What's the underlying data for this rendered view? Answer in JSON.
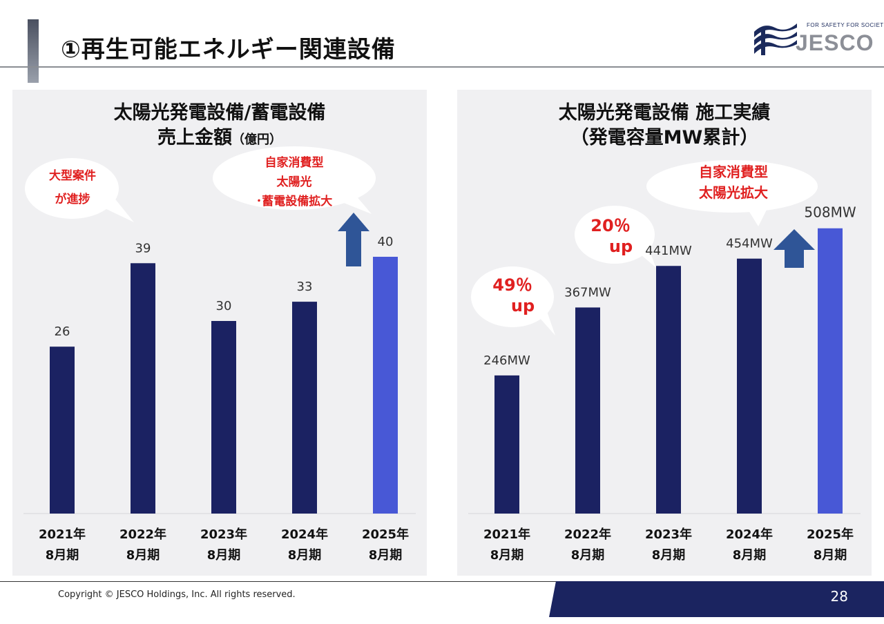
{
  "page": {
    "title": "①再生可能エネルギー関連設備",
    "logo_tagline": "FOR SAFETY FOR SOCIETY",
    "logo_text": "JESCO",
    "copyright": "Copyright © JESCO Holdings, Inc.  All rights reserved.",
    "page_number": "28"
  },
  "colors": {
    "bar": "#1b2262",
    "bar_highlight": "#4858d6",
    "arrow": "#2f5597",
    "callout_text": "#e02020",
    "panel_bg": "#f0f0f2"
  },
  "left_panel": {
    "title_line1": "太陽光発電設備/蓄電設備",
    "title_line2": "売上金額",
    "title_unit": "（億円）",
    "callout_a": [
      "大型案件",
      "が進捗"
    ],
    "callout_b": [
      "自家消費型",
      "太陽光",
      "･蓄電設備拡大"
    ]
  },
  "right_panel": {
    "title_line1": "太陽光発電設備 施工実績",
    "title_line2": "（発電容量MW累計）",
    "callout_a": [
      "49％",
      "up"
    ],
    "callout_b": [
      "20％",
      "up"
    ],
    "callout_c": [
      "自家消費型",
      "太陽光拡大"
    ]
  },
  "chart_data": [
    {
      "type": "bar",
      "title": "太陽光発電設備/蓄電設備 売上金額（億円）",
      "categories": [
        "2021年\n8月期",
        "2022年\n8月期",
        "2023年\n8月期",
        "2024年\n8月期",
        "2025年\n8月期"
      ],
      "values": [
        26,
        39,
        30,
        33,
        40
      ],
      "data_labels": [
        "26",
        "39",
        "30",
        "33",
        "40"
      ],
      "highlight_index": 4,
      "ylim": [
        0,
        50
      ],
      "grid": false
    },
    {
      "type": "bar",
      "title": "太陽光発電設備 施工実績（発電容量MW累計）",
      "categories": [
        "2021年\n8月期",
        "2022年\n8月期",
        "2023年\n8月期",
        "2024年\n8月期",
        "2025年\n8月期"
      ],
      "values": [
        246,
        367,
        441,
        454,
        508
      ],
      "data_labels": [
        "246MW",
        "367MW",
        "441MW",
        "454MW",
        "508MW"
      ],
      "highlight_index": 4,
      "ylim": [
        0,
        600
      ],
      "grid": false
    }
  ]
}
